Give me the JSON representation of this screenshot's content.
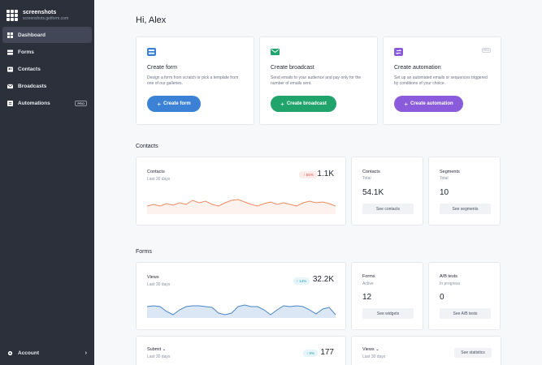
{
  "brand": {
    "name": "screenshots",
    "url": "screenshots.getform.com"
  },
  "sidebar": {
    "items": [
      {
        "label": "Dashboard",
        "icon": "dashboard-icon",
        "active": true
      },
      {
        "label": "Forms",
        "icon": "forms-icon",
        "active": false
      },
      {
        "label": "Contacts",
        "icon": "contacts-icon",
        "active": false
      },
      {
        "label": "Broadcasts",
        "icon": "broadcasts-icon",
        "active": false
      },
      {
        "label": "Automations",
        "icon": "automations-icon",
        "active": false,
        "badge": "PRO"
      }
    ],
    "account": {
      "label": "Account",
      "icon": "gear-icon"
    }
  },
  "greeting": "Hi, Alex",
  "create_cards": [
    {
      "title": "Create form",
      "description": "Design a form from scratch or pick a template from one of our galleries.",
      "button": "Create form",
      "color": "#3b82d6",
      "icon": "form-icon"
    },
    {
      "title": "Create broadcast",
      "description": "Send emails to your audience and pay only for the number of emails sent.",
      "button": "Create broadcast",
      "color": "#20a46b",
      "icon": "envelope-icon"
    },
    {
      "title": "Create automation",
      "description": "Set up an automated emails or sequences triggered by conditions of your choice.",
      "button": "Create automation",
      "color": "#8a5cdc",
      "icon": "automation-icon",
      "badge": "PRO"
    }
  ],
  "contacts_section": {
    "title": "Contacts",
    "chart": {
      "label": "Contacts",
      "period": "Last 30 days",
      "delta": "↑ 55%",
      "value": "1.1K"
    },
    "total": {
      "label": "Contacts",
      "sub": "Total",
      "value": "54.1K",
      "button": "See contacts"
    },
    "segments": {
      "label": "Segments",
      "sub": "Total",
      "value": "10",
      "button": "See segments"
    }
  },
  "forms_section": {
    "title": "Forms",
    "chart": {
      "label": "Views",
      "period": "Last 30 days",
      "delta": "↑ 14%",
      "value": "32.2K"
    },
    "forms": {
      "label": "Forms",
      "sub": "Active",
      "value": "12",
      "button": "See widgets"
    },
    "ab": {
      "label": "A/B tests",
      "sub": "In progress",
      "value": "0",
      "button": "See A/B tests"
    },
    "submit": {
      "label": "Submit",
      "period": "Last 30 days",
      "delta": "↑ 8%",
      "value": "177"
    },
    "views": {
      "label": "Views",
      "period": "Last 30 days",
      "button": "See statistics"
    }
  },
  "colors": {
    "sidebar": "#2b303b",
    "contacts_line": "#ef8a60",
    "views_line": "#4a86c8"
  }
}
